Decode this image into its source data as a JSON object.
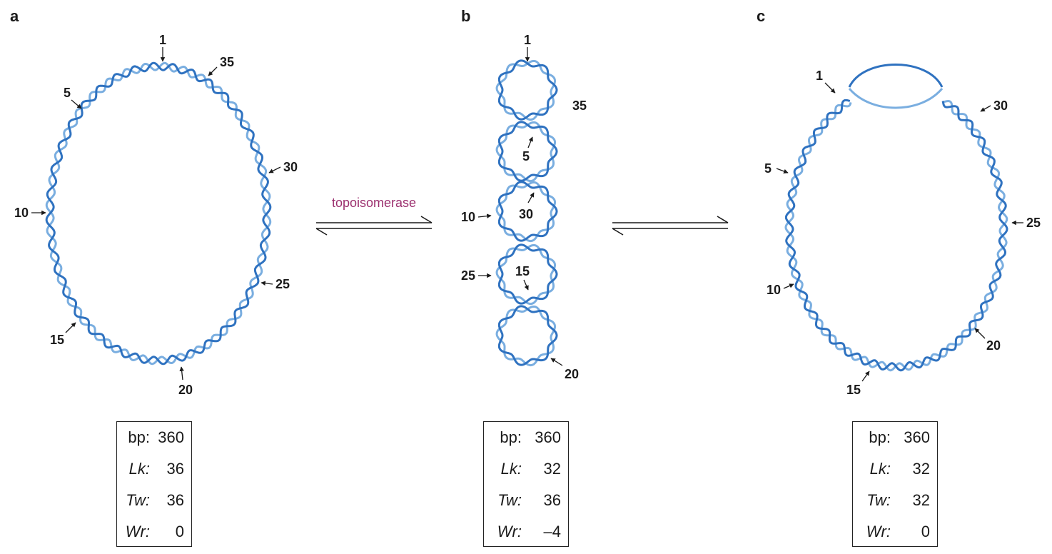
{
  "panels": [
    {
      "letter": "a",
      "stats": [
        {
          "key": "bp:",
          "value": "360",
          "italic": false
        },
        {
          "key": "Lk:",
          "value": "36",
          "italic": true
        },
        {
          "key": "Tw:",
          "value": "36",
          "italic": true
        },
        {
          "key": "Wr:",
          "value": "0",
          "italic": true
        }
      ],
      "markers": [
        "1",
        "5",
        "10",
        "15",
        "20",
        "25",
        "30",
        "35"
      ]
    },
    {
      "letter": "b",
      "stats": [
        {
          "key": "bp:",
          "value": "360",
          "italic": false
        },
        {
          "key": "Lk:",
          "value": "32",
          "italic": true
        },
        {
          "key": "Tw:",
          "value": "36",
          "italic": true
        },
        {
          "key": "Wr:",
          "value": "–4",
          "italic": true
        }
      ],
      "markers": [
        "1",
        "35",
        "5",
        "10",
        "30",
        "25",
        "15",
        "20"
      ]
    },
    {
      "letter": "c",
      "stats": [
        {
          "key": "bp:",
          "value": "360",
          "italic": false
        },
        {
          "key": "Lk:",
          "value": "32",
          "italic": true
        },
        {
          "key": "Tw:",
          "value": "32",
          "italic": true
        },
        {
          "key": "Wr:",
          "value": "0",
          "italic": true
        }
      ],
      "markers": [
        "1",
        "30",
        "5",
        "25",
        "10",
        "20",
        "15"
      ]
    }
  ],
  "enzyme_label": "topoisomerase",
  "colors": {
    "strand_dark": "#2f72c0",
    "strand_light": "#7aaee0",
    "enzyme_text": "#9b2f6e",
    "text": "#1a1a1a"
  }
}
